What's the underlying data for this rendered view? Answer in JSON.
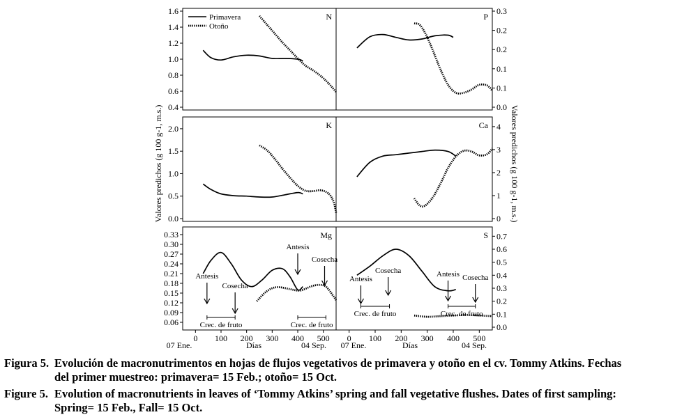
{
  "ylabel_left": "Valores predichos (g 100 g-1, m.s.)",
  "ylabel_right": "Valores predichos (g 100 g-1, m.s.)",
  "xlabel": "Días",
  "date_start": "07 Ene.",
  "date_end": "04 Sep.",
  "legend": {
    "spring": "Primavera",
    "fall": "Otoño"
  },
  "annotations": {
    "antesis": "Antesis",
    "cosecha": "Cosecha",
    "crec_fruto": "Crec. de fruto"
  },
  "caption_es": {
    "label": "Figura 5.",
    "line1": "Evolución de macronutrimentos en hojas de flujos vegetativos de primavera y otoño en el cv. Tommy Atkins. Fechas",
    "line2": "del primer muestreo: primavera= 15 Feb.; otoño= 15 Oct."
  },
  "caption_en": {
    "label": "Figure 5.",
    "line1": "Evolution of macronutrients in leaves of ‘Tommy Atkins’ spring and fall vegetative flushes. Dates of first sampling:",
    "line2": "Spring= 15 Feb., Fall= 15 Oct."
  },
  "chart_data": [
    {
      "type": "line",
      "panel": "N",
      "xlim": [
        -50,
        550
      ],
      "ylim": [
        0.4,
        1.6
      ],
      "yticks": [
        "0.4",
        "0.6",
        "0.8",
        "1.0",
        "1.2",
        "1.4",
        "1.6"
      ],
      "series": [
        {
          "name": "Primavera",
          "x": [
            30,
            60,
            100,
            150,
            200,
            250,
            300,
            350,
            400,
            420
          ],
          "y": [
            1.11,
            1.02,
            0.99,
            1.03,
            1.05,
            1.04,
            1.01,
            1.01,
            1.0,
            0.98
          ]
        },
        {
          "name": "Otoño",
          "x": [
            250,
            280,
            310,
            340,
            370,
            400,
            430,
            460,
            490,
            520,
            550
          ],
          "y": [
            1.54,
            1.43,
            1.32,
            1.21,
            1.11,
            1.01,
            0.92,
            0.86,
            0.79,
            0.7,
            0.59
          ]
        }
      ]
    },
    {
      "type": "line",
      "panel": "P",
      "xlim": [
        -50,
        550
      ],
      "ylim": [
        0.0,
        0.3
      ],
      "yticks": [
        "0.0",
        "0.1",
        "0.1",
        "0.2",
        "0.2",
        "0.3"
      ],
      "series": [
        {
          "name": "Primavera",
          "x": [
            30,
            80,
            130,
            180,
            230,
            280,
            330,
            380,
            400
          ],
          "y": [
            0.185,
            0.22,
            0.227,
            0.218,
            0.21,
            0.213,
            0.223,
            0.225,
            0.218
          ]
        },
        {
          "name": "Otoño",
          "x": [
            250,
            270,
            290,
            310,
            330,
            350,
            380,
            410,
            440,
            470,
            500,
            530,
            550
          ],
          "y": [
            0.262,
            0.258,
            0.235,
            0.2,
            0.16,
            0.12,
            0.07,
            0.045,
            0.045,
            0.055,
            0.07,
            0.068,
            0.052
          ]
        }
      ]
    },
    {
      "type": "line",
      "panel": "K",
      "xlim": [
        -50,
        550
      ],
      "ylim": [
        0.0,
        2.2
      ],
      "yticks": [
        "0.0",
        "0.5",
        "1.0",
        "1.5",
        "2.0"
      ],
      "series": [
        {
          "name": "Primavera",
          "x": [
            30,
            60,
            100,
            150,
            200,
            250,
            300,
            350,
            400,
            420
          ],
          "y": [
            0.77,
            0.65,
            0.55,
            0.51,
            0.5,
            0.48,
            0.48,
            0.53,
            0.58,
            0.55
          ]
        },
        {
          "name": "Otoño",
          "x": [
            250,
            280,
            310,
            340,
            370,
            400,
            430,
            460,
            490,
            520,
            540,
            550
          ],
          "y": [
            1.63,
            1.52,
            1.33,
            1.11,
            0.91,
            0.73,
            0.62,
            0.61,
            0.63,
            0.56,
            0.38,
            0.13
          ]
        }
      ]
    },
    {
      "type": "line",
      "panel": "Ca",
      "xlim": [
        -50,
        550
      ],
      "ylim": [
        0,
        4.3
      ],
      "yticks": [
        "0",
        "1",
        "2",
        "3",
        "4"
      ],
      "series": [
        {
          "name": "Primavera",
          "x": [
            30,
            80,
            130,
            180,
            230,
            280,
            330,
            380,
            410
          ],
          "y": [
            1.82,
            2.45,
            2.72,
            2.78,
            2.85,
            2.92,
            2.98,
            2.92,
            2.72
          ]
        },
        {
          "name": "Otoño",
          "x": [
            250,
            270,
            290,
            320,
            350,
            380,
            410,
            440,
            470,
            500,
            530,
            550
          ],
          "y": [
            0.88,
            0.58,
            0.55,
            0.9,
            1.5,
            2.2,
            2.7,
            2.95,
            2.92,
            2.75,
            2.8,
            3.05
          ]
        }
      ]
    },
    {
      "type": "line",
      "panel": "Mg",
      "xlim": [
        -50,
        550
      ],
      "ylim": [
        0.045,
        0.345
      ],
      "yticks": [
        "0.06",
        "0.09",
        "0.12",
        "0.15",
        "0.18",
        "0.21",
        "0.24",
        "0.27",
        "0.30",
        "0.33"
      ],
      "series": [
        {
          "name": "Primavera",
          "x": [
            30,
            60,
            100,
            140,
            180,
            220,
            260,
            300,
            340,
            370,
            400,
            420
          ],
          "y": [
            0.21,
            0.25,
            0.275,
            0.24,
            0.19,
            0.17,
            0.19,
            0.22,
            0.225,
            0.2,
            0.16,
            0.17
          ]
        },
        {
          "name": "Otoño",
          "x": [
            240,
            270,
            300,
            330,
            370,
            410,
            450,
            480,
            510,
            540,
            550
          ],
          "y": [
            0.125,
            0.15,
            0.165,
            0.168,
            0.162,
            0.158,
            0.17,
            0.175,
            0.17,
            0.14,
            0.128
          ]
        }
      ],
      "annotations": [
        {
          "text": "Antesis",
          "x": 45
        },
        {
          "text": "Cosecha",
          "x": 155
        },
        {
          "text": "Crec. de fruto",
          "x_range": [
            45,
            155
          ]
        },
        {
          "text": "Antesis",
          "x": 400
        },
        {
          "text": "Cosecha",
          "x": 505
        },
        {
          "text": "Crec. de fruto",
          "x_range": [
            400,
            510
          ]
        }
      ]
    },
    {
      "type": "line",
      "panel": "S",
      "xlim": [
        -50,
        550
      ],
      "ylim": [
        0.0,
        0.75
      ],
      "yticks": [
        "0.0",
        "0.1",
        "0.2",
        "0.3",
        "0.4",
        "0.5",
        "0.6",
        "0.7"
      ],
      "series": [
        {
          "name": "Primavera",
          "x": [
            30,
            80,
            130,
            180,
            230,
            280,
            330,
            380,
            410
          ],
          "y": [
            0.4,
            0.47,
            0.55,
            0.6,
            0.55,
            0.43,
            0.31,
            0.28,
            0.29
          ]
        },
        {
          "name": "Otoño",
          "x": [
            250,
            300,
            350,
            400,
            450,
            500,
            550
          ],
          "y": [
            0.09,
            0.08,
            0.085,
            0.09,
            0.095,
            0.09,
            0.085
          ]
        }
      ],
      "annotations": [
        {
          "text": "Antesis",
          "x": 45
        },
        {
          "text": "Cosecha",
          "x": 150
        },
        {
          "text": "Crec. de fruto",
          "x_range": [
            45,
            155
          ]
        },
        {
          "text": "Antesis",
          "x": 380
        },
        {
          "text": "Cosecha",
          "x": 485
        },
        {
          "text": "Crec. de fruto",
          "x_range": [
            380,
            485
          ]
        }
      ]
    }
  ],
  "xticks": [
    0,
    100,
    200,
    300,
    400,
    500
  ]
}
